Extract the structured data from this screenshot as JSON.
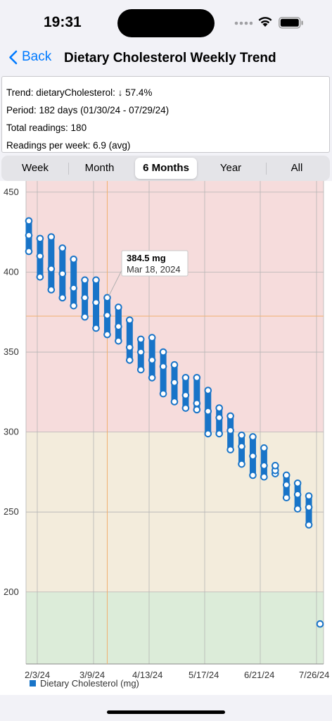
{
  "status_bar": {
    "time": "19:31"
  },
  "nav": {
    "back_label": "Back",
    "title": "Dietary Cholesterol Weekly Trend"
  },
  "info": {
    "trend": "Trend: dietaryCholesterol:  ↓ 57.4%",
    "period": "Period: 182 days (01/30/24 - 07/29/24)",
    "total": "Total readings: 180",
    "per_week": "Readings per week: 6.9 (avg)"
  },
  "tabs": [
    {
      "label": "Week",
      "selected": false
    },
    {
      "label": "Month",
      "selected": false
    },
    {
      "label": "6 Months",
      "selected": true
    },
    {
      "label": "Year",
      "selected": false
    },
    {
      "label": "All",
      "selected": false
    }
  ],
  "tooltip": {
    "value": "384.5 mg",
    "date": "Mar 18, 2024"
  },
  "colors": {
    "series": "#1874c8",
    "zone_high": "#f6dcdc",
    "zone_mid": "#f3ecdc",
    "zone_low": "#dcecd9"
  },
  "chart_data": {
    "type": "range-bar",
    "series_name": "Dietary Cholesterol (mg)",
    "x_ticks": [
      "2/3/24",
      "3/9/24",
      "4/13/24",
      "5/17/24",
      "6/21/24",
      "7/26/24"
    ],
    "ylim": [
      155,
      457
    ],
    "y_ticks": [
      200,
      250,
      300,
      350,
      400,
      450
    ],
    "zones": [
      {
        "from": 300,
        "to": 457,
        "color": "high"
      },
      {
        "from": 200,
        "to": 300,
        "color": "mid"
      },
      {
        "from": 155,
        "to": 200,
        "color": "low"
      }
    ],
    "grid": true,
    "legend_position": "bottom-left",
    "points": [
      {
        "day": 0,
        "min": 413,
        "max": 432,
        "values": [
          413,
          423,
          432
        ]
      },
      {
        "day": 3,
        "min": 397,
        "max": 421,
        "values": [
          397,
          410,
          421
        ]
      },
      {
        "day": 6,
        "min": 389,
        "max": 422,
        "values": [
          389,
          402,
          422
        ]
      },
      {
        "day": 9,
        "min": 384,
        "max": 415,
        "values": [
          384,
          399,
          415
        ]
      },
      {
        "day": 12,
        "min": 379,
        "max": 408,
        "values": [
          379,
          390,
          408
        ]
      },
      {
        "day": 15,
        "min": 372,
        "max": 395,
        "values": [
          372,
          384,
          395
        ]
      },
      {
        "day": 18,
        "min": 365,
        "max": 395,
        "values": [
          365,
          381,
          395
        ]
      },
      {
        "day": 21,
        "min": 361,
        "max": 384,
        "values": [
          361,
          373,
          384
        ]
      },
      {
        "day": 24,
        "min": 357,
        "max": 378,
        "values": [
          357,
          366,
          378
        ]
      },
      {
        "day": 27,
        "min": 345,
        "max": 370,
        "values": [
          345,
          353,
          370
        ]
      },
      {
        "day": 30,
        "min": 339,
        "max": 358,
        "values": [
          339,
          350,
          358
        ]
      },
      {
        "day": 33,
        "min": 334,
        "max": 359,
        "values": [
          334,
          345,
          359
        ]
      },
      {
        "day": 36,
        "min": 324,
        "max": 350,
        "values": [
          324,
          341,
          350
        ]
      },
      {
        "day": 39,
        "min": 319,
        "max": 342,
        "values": [
          319,
          331,
          342
        ]
      },
      {
        "day": 42,
        "min": 315,
        "max": 334,
        "values": [
          315,
          323,
          334
        ]
      },
      {
        "day": 45,
        "min": 314,
        "max": 334,
        "values": [
          314,
          318,
          334
        ]
      },
      {
        "day": 48,
        "min": 299,
        "max": 326,
        "values": [
          299,
          313,
          326
        ]
      },
      {
        "day": 51,
        "min": 299,
        "max": 315,
        "values": [
          299,
          309,
          315
        ]
      },
      {
        "day": 54,
        "min": 289,
        "max": 310,
        "values": [
          289,
          301,
          310
        ]
      },
      {
        "day": 57,
        "min": 280,
        "max": 298,
        "values": [
          280,
          291,
          298
        ]
      },
      {
        "day": 60,
        "min": 273,
        "max": 297,
        "values": [
          273,
          285,
          297
        ]
      },
      {
        "day": 63,
        "min": 272,
        "max": 290,
        "values": [
          272,
          279,
          290
        ]
      },
      {
        "day": 66,
        "min": 274,
        "max": 279,
        "values": [
          274,
          276,
          279
        ]
      },
      {
        "day": 69,
        "min": 259,
        "max": 273,
        "values": [
          259,
          267,
          273
        ]
      },
      {
        "day": 72,
        "min": 252,
        "max": 268,
        "values": [
          252,
          261,
          268
        ]
      },
      {
        "day": 75,
        "min": 242,
        "max": 260,
        "values": [
          242,
          253,
          260
        ]
      },
      {
        "day": 78,
        "min": 180,
        "max": 180,
        "values": [
          180
        ]
      }
    ],
    "selected_index": 7
  }
}
